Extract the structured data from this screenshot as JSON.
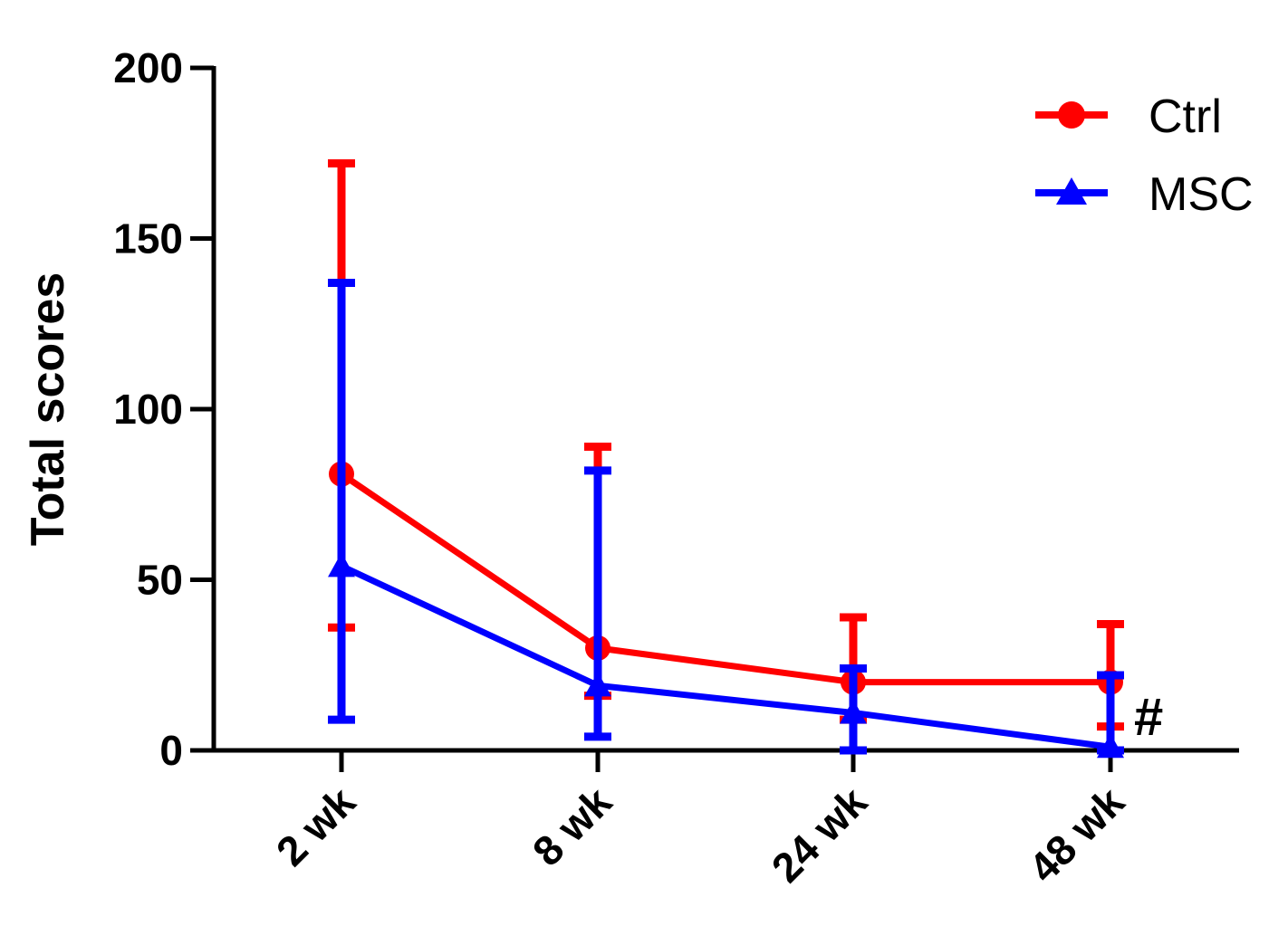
{
  "chart_data": {
    "type": "line",
    "categories": [
      "2 wk",
      "8 wk",
      "24 wk",
      "48 wk"
    ],
    "ylabel": "Total scores",
    "xlabel": "",
    "ylim": [
      0,
      200
    ],
    "yticks": [
      0,
      50,
      100,
      150,
      200
    ],
    "legend_position": "top-right",
    "series": [
      {
        "name": "Ctrl",
        "color": "#ff0000",
        "marker": "circle",
        "values": [
          81,
          30,
          20,
          20
        ],
        "error_low": [
          36,
          16,
          9,
          7
        ],
        "error_high": [
          172,
          89,
          39,
          37
        ]
      },
      {
        "name": "MSC",
        "color": "#0000ff",
        "marker": "triangle",
        "values": [
          54,
          19,
          11,
          1
        ],
        "error_low": [
          9,
          4,
          0,
          0
        ],
        "error_high": [
          137,
          82,
          24,
          22
        ]
      }
    ],
    "annotations": [
      {
        "text": "#",
        "category": "48 wk"
      }
    ]
  }
}
